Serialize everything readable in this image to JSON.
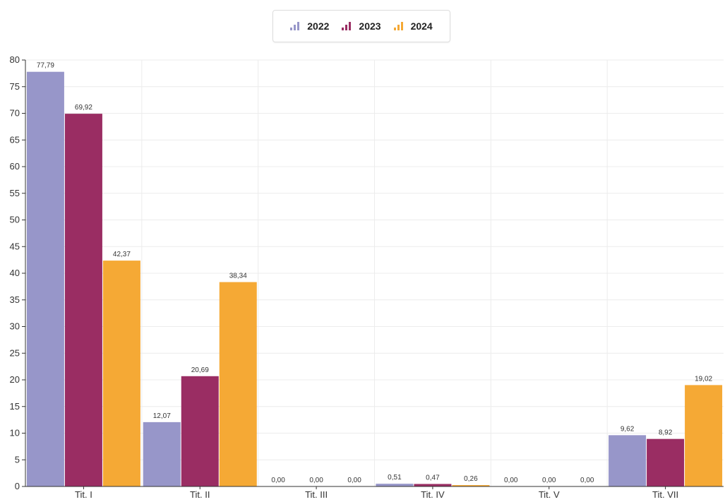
{
  "chart_data": {
    "type": "bar",
    "categories": [
      "Tit. I",
      "Tit. II",
      "Tit. III",
      "Tit. IV",
      "Tit. V",
      "Tit. VII"
    ],
    "series": [
      {
        "name": "2022",
        "color": "#9796c9",
        "values": [
          77.79,
          12.07,
          0.0,
          0.51,
          0.0,
          9.62
        ],
        "labels": [
          "77,79",
          "12,07",
          "0,00",
          "0,51",
          "0,00",
          "9,62"
        ]
      },
      {
        "name": "2023",
        "color": "#9a2d63",
        "values": [
          69.92,
          20.69,
          0.0,
          0.47,
          0.0,
          8.92
        ],
        "labels": [
          "69,92",
          "20,69",
          "0,00",
          "0,47",
          "0,00",
          "8,92"
        ]
      },
      {
        "name": "2024",
        "color": "#f5a935",
        "values": [
          42.37,
          38.34,
          0.0,
          0.26,
          0.0,
          19.02
        ],
        "labels": [
          "42,37",
          "38,34",
          "0,00",
          "0,26",
          "0,00",
          "19,02"
        ]
      }
    ],
    "ylim": [
      0,
      80
    ],
    "yticks": [
      0,
      5,
      10,
      15,
      20,
      25,
      30,
      35,
      40,
      45,
      50,
      55,
      60,
      65,
      70,
      75,
      80
    ],
    "title": "",
    "xlabel": "",
    "ylabel": "",
    "grid": true,
    "legend_position": "top-center"
  }
}
